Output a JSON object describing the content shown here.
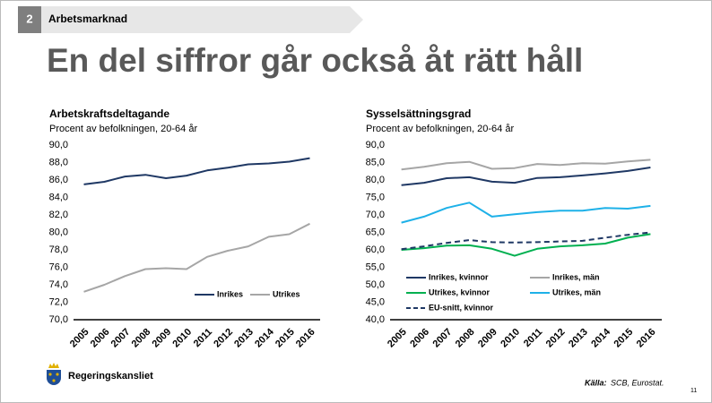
{
  "section_number": "2",
  "section": "Arbetsmarknad",
  "title": "En del siffror går också åt rätt håll",
  "footer": {
    "org": "Regeringskansliet",
    "source_label": "Källa:",
    "source": "SCB, Eurostat.",
    "page": "11"
  },
  "chart_data": [
    {
      "type": "line",
      "title": "Arbetskraftsdeltagande",
      "subtitle": "Procent av befolkningen, 20-64 år",
      "categories": [
        "2005",
        "2006",
        "2007",
        "2008",
        "2009",
        "2010",
        "2011",
        "2012",
        "2013",
        "2014",
        "2015",
        "2016"
      ],
      "ylim": [
        70,
        90
      ],
      "yticks": [
        {
          "value": 70,
          "label": "70,0"
        },
        {
          "value": 72,
          "label": "72,0"
        },
        {
          "value": 74,
          "label": "74,0"
        },
        {
          "value": 76,
          "label": "76,0"
        },
        {
          "value": 78,
          "label": "78,0"
        },
        {
          "value": 80,
          "label": "80,0"
        },
        {
          "value": 82,
          "label": "82,0"
        },
        {
          "value": 84,
          "label": "84,0"
        },
        {
          "value": 86,
          "label": "86,0"
        },
        {
          "value": 88,
          "label": "88,0"
        },
        {
          "value": 90,
          "label": "90,0"
        }
      ],
      "grid": false,
      "legend": "lower-right",
      "series": [
        {
          "name": "Inrikes",
          "color": "#1f3864",
          "values": [
            85.5,
            85.8,
            86.4,
            86.6,
            86.2,
            86.5,
            87.1,
            87.4,
            87.8,
            87.9,
            88.1,
            88.5
          ]
        },
        {
          "name": "Utrikes",
          "color": "#a6a6a6",
          "values": [
            73.2,
            74.0,
            75.0,
            75.8,
            75.9,
            75.8,
            77.2,
            77.9,
            78.4,
            79.5,
            79.8,
            81.0
          ]
        }
      ]
    },
    {
      "type": "line",
      "title": "Sysselsättningsgrad",
      "subtitle": "Procent av befolkningen, 20-64 år",
      "categories": [
        "2005",
        "2006",
        "2007",
        "2008",
        "2009",
        "2010",
        "2011",
        "2012",
        "2013",
        "2014",
        "2015",
        "2016"
      ],
      "ylim": [
        40,
        90
      ],
      "yticks": [
        {
          "value": 40,
          "label": "40,0"
        },
        {
          "value": 45,
          "label": "45,0"
        },
        {
          "value": 50,
          "label": "50,0"
        },
        {
          "value": 55,
          "label": "55,0"
        },
        {
          "value": 60,
          "label": "60,0"
        },
        {
          "value": 65,
          "label": "65,0"
        },
        {
          "value": 70,
          "label": "70,0"
        },
        {
          "value": 75,
          "label": "75,0"
        },
        {
          "value": 80,
          "label": "80,0"
        },
        {
          "value": 85,
          "label": "85,0"
        },
        {
          "value": 90,
          "label": "90,0"
        }
      ],
      "grid": false,
      "legend": "bottom",
      "series": [
        {
          "name": "Inrikes, kvinnor",
          "color": "#1f3864",
          "values": [
            78.5,
            79.2,
            80.5,
            80.8,
            79.5,
            79.2,
            80.6,
            80.8,
            81.3,
            81.9,
            82.6,
            83.6
          ]
        },
        {
          "name": "Inrikes, män",
          "color": "#a6a6a6",
          "values": [
            83.0,
            83.8,
            84.8,
            85.2,
            83.2,
            83.4,
            84.6,
            84.3,
            84.8,
            84.7,
            85.3,
            85.8
          ]
        },
        {
          "name": "Utrikes, kvinnor",
          "color": "#00b050",
          "values": [
            60.0,
            60.5,
            61.2,
            61.3,
            60.3,
            58.3,
            60.3,
            61.0,
            61.3,
            61.8,
            63.5,
            64.5
          ]
        },
        {
          "name": "Utrikes, män",
          "color": "#1eb1e8",
          "values": [
            67.8,
            69.5,
            72.0,
            73.5,
            69.5,
            70.2,
            70.8,
            71.2,
            71.2,
            72.0,
            71.8,
            72.6
          ]
        },
        {
          "name": "EU-snitt, kvinnor",
          "color": "#1f3864",
          "dash": true,
          "values": [
            60.2,
            61.0,
            62.0,
            62.8,
            62.2,
            62.1,
            62.2,
            62.4,
            62.6,
            63.5,
            64.3,
            65.0
          ]
        }
      ]
    }
  ]
}
